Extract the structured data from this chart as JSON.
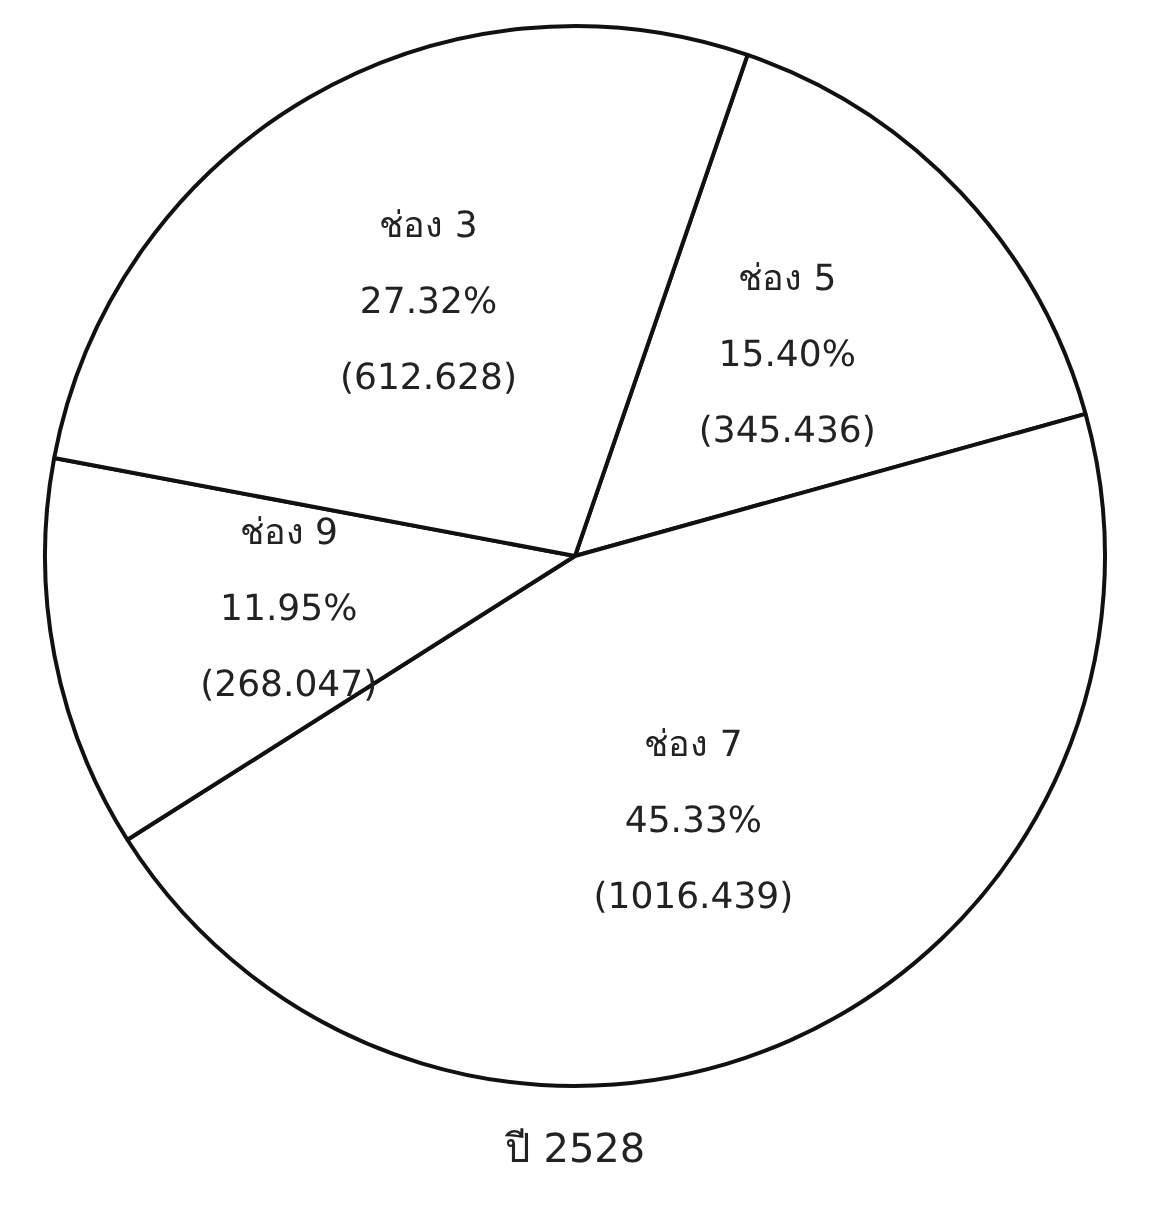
{
  "chart_data": {
    "type": "pie",
    "title": "ปี 2528",
    "categories": [
      "ช่อง 5",
      "ช่อง 7",
      "ช่อง 9",
      "ช่อง 3"
    ],
    "values": [
      345.436,
      1016.439,
      268.047,
      612.628
    ],
    "value_labels": [
      "15.40%\n(345.436)",
      "45.33%\n(1016.439)",
      "11.95%\n(268.047)",
      "27.32%\n(612.628)"
    ],
    "colors": [
      "#ffffff",
      "#ffffff",
      "#ffffff",
      "#ffffff"
    ],
    "legend": false
  }
}
